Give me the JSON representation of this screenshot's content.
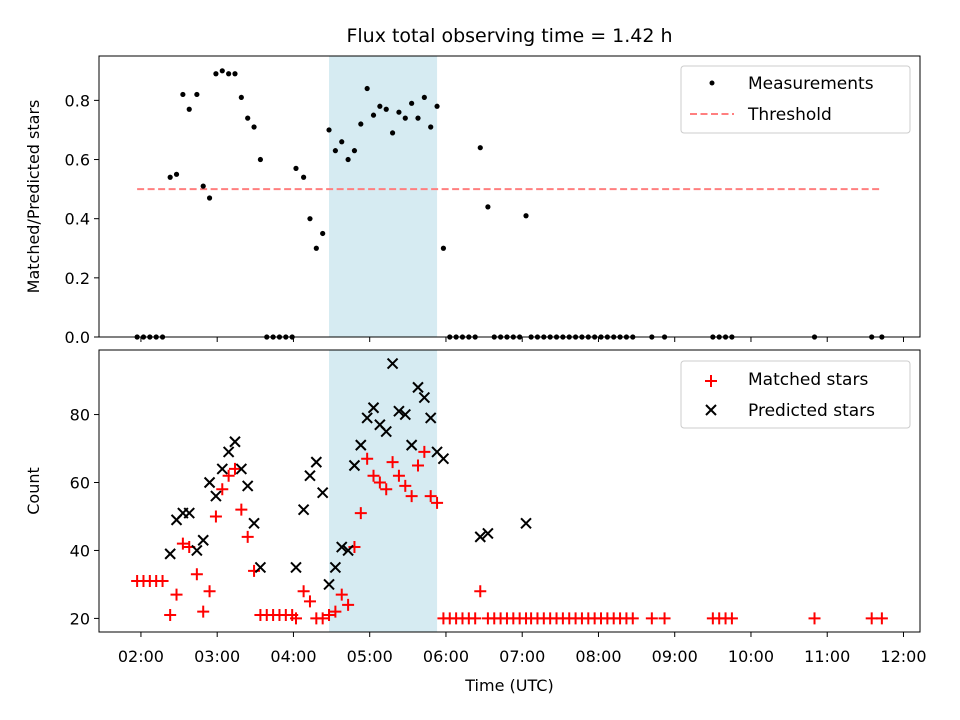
{
  "chart_data": [
    {
      "type": "scatter",
      "panel": "top",
      "title": "Flux total observing time = 1.42 h",
      "ylabel": "Matched/Predicted stars",
      "xlabel": "",
      "xlim": [
        "01:27",
        "12:13"
      ],
      "ylim": [
        0,
        0.95
      ],
      "yticks": [
        "0.0",
        "0.2",
        "0.4",
        "0.6",
        "0.8"
      ],
      "ytick_values": [
        0,
        0.2,
        0.4,
        0.6,
        0.8
      ],
      "shaded_interval": {
        "from": "04:28",
        "to": "05:53",
        "color": "#add8e6"
      },
      "legend": "top-right",
      "series": [
        {
          "name": "Measurements",
          "kind": "dot",
          "color": "#000000",
          "points": [
            [
              "01:57",
              0
            ],
            [
              "02:02",
              0
            ],
            [
              "02:07",
              0
            ],
            [
              "02:12",
              0
            ],
            [
              "02:17",
              0
            ],
            [
              "02:23",
              0.54
            ],
            [
              "02:28",
              0.55
            ],
            [
              "02:33",
              0.82
            ],
            [
              "02:38",
              0.77
            ],
            [
              "02:44",
              0.82
            ],
            [
              "02:49",
              0.51
            ],
            [
              "02:54",
              0.47
            ],
            [
              "02:59",
              0.89
            ],
            [
              "03:04",
              0.9
            ],
            [
              "03:09",
              0.89
            ],
            [
              "03:14",
              0.89
            ],
            [
              "03:19",
              0.81
            ],
            [
              "03:24",
              0.74
            ],
            [
              "03:29",
              0.71
            ],
            [
              "03:34",
              0.6
            ],
            [
              "03:39",
              0
            ],
            [
              "03:44",
              0
            ],
            [
              "03:49",
              0
            ],
            [
              "03:54",
              0
            ],
            [
              "03:59",
              0
            ],
            [
              "04:02",
              0.57
            ],
            [
              "04:08",
              0.54
            ],
            [
              "04:13",
              0.4
            ],
            [
              "04:18",
              0.3
            ],
            [
              "04:23",
              0.35
            ],
            [
              "04:28",
              0.7
            ],
            [
              "04:33",
              0.63
            ],
            [
              "04:38",
              0.66
            ],
            [
              "04:43",
              0.6
            ],
            [
              "04:48",
              0.63
            ],
            [
              "04:53",
              0.72
            ],
            [
              "04:58",
              0.84
            ],
            [
              "05:03",
              0.75
            ],
            [
              "05:08",
              0.78
            ],
            [
              "05:13",
              0.77
            ],
            [
              "05:18",
              0.69
            ],
            [
              "05:23",
              0.76
            ],
            [
              "05:28",
              0.74
            ],
            [
              "05:33",
              0.79
            ],
            [
              "05:38",
              0.74
            ],
            [
              "05:43",
              0.81
            ],
            [
              "05:48",
              0.71
            ],
            [
              "05:53",
              0.78
            ],
            [
              "05:58",
              0.3
            ],
            [
              "06:03",
              0
            ],
            [
              "06:08",
              0
            ],
            [
              "06:13",
              0
            ],
            [
              "06:18",
              0
            ],
            [
              "06:23",
              0
            ],
            [
              "06:27",
              0.64
            ],
            [
              "06:33",
              0.44
            ],
            [
              "06:38",
              0
            ],
            [
              "06:43",
              0
            ],
            [
              "06:48",
              0
            ],
            [
              "06:53",
              0
            ],
            [
              "06:58",
              0
            ],
            [
              "07:03",
              0.41
            ],
            [
              "07:07",
              0
            ],
            [
              "07:12",
              0
            ],
            [
              "07:17",
              0
            ],
            [
              "07:22",
              0
            ],
            [
              "07:27",
              0
            ],
            [
              "07:32",
              0
            ],
            [
              "07:37",
              0
            ],
            [
              "07:42",
              0
            ],
            [
              "07:47",
              0
            ],
            [
              "07:52",
              0
            ],
            [
              "07:57",
              0
            ],
            [
              "08:02",
              0
            ],
            [
              "08:07",
              0
            ],
            [
              "08:12",
              0
            ],
            [
              "08:17",
              0
            ],
            [
              "08:22",
              0
            ],
            [
              "08:27",
              0
            ],
            [
              "08:42",
              0
            ],
            [
              "08:52",
              0
            ],
            [
              "09:30",
              0
            ],
            [
              "09:35",
              0
            ],
            [
              "09:40",
              0
            ],
            [
              "09:45",
              0
            ],
            [
              "10:50",
              0
            ],
            [
              "11:35",
              0
            ],
            [
              "11:43",
              0
            ]
          ]
        },
        {
          "name": "Threshold",
          "kind": "dashed-line",
          "color": "#ff7f7f",
          "points": [
            [
              "01:57",
              0.5
            ],
            [
              "11:43",
              0.5
            ]
          ]
        }
      ]
    },
    {
      "type": "scatter",
      "panel": "bottom",
      "title": "",
      "ylabel": "Count",
      "xlabel": "Time (UTC)",
      "xlim": [
        "01:27",
        "12:13"
      ],
      "ylim": [
        16,
        99
      ],
      "yticks": [
        "20",
        "40",
        "60",
        "80"
      ],
      "ytick_values": [
        20,
        40,
        60,
        80
      ],
      "xticks": [
        "02:00",
        "03:00",
        "04:00",
        "05:00",
        "06:00",
        "07:00",
        "08:00",
        "09:00",
        "10:00",
        "11:00",
        "12:00"
      ],
      "shaded_interval": {
        "from": "04:28",
        "to": "05:53",
        "color": "#add8e6"
      },
      "legend": "top-right",
      "series": [
        {
          "name": "Matched stars",
          "kind": "plus",
          "color": "#ff0000",
          "points": [
            [
              "01:57",
              31
            ],
            [
              "02:02",
              31
            ],
            [
              "02:07",
              31
            ],
            [
              "02:12",
              31
            ],
            [
              "02:17",
              31
            ],
            [
              "02:23",
              21
            ],
            [
              "02:28",
              27
            ],
            [
              "02:33",
              42
            ],
            [
              "02:38",
              41
            ],
            [
              "02:44",
              33
            ],
            [
              "02:49",
              22
            ],
            [
              "02:54",
              28
            ],
            [
              "02:59",
              50
            ],
            [
              "03:04",
              58
            ],
            [
              "03:09",
              62
            ],
            [
              "03:14",
              64
            ],
            [
              "03:19",
              52
            ],
            [
              "03:24",
              44
            ],
            [
              "03:29",
              34
            ],
            [
              "03:34",
              21
            ],
            [
              "03:39",
              21
            ],
            [
              "03:44",
              21
            ],
            [
              "03:49",
              21
            ],
            [
              "03:54",
              21
            ],
            [
              "03:59",
              21
            ],
            [
              "04:02",
              20
            ],
            [
              "04:08",
              28
            ],
            [
              "04:13",
              25
            ],
            [
              "04:18",
              20
            ],
            [
              "04:23",
              20
            ],
            [
              "04:28",
              21
            ],
            [
              "04:33",
              22
            ],
            [
              "04:38",
              27
            ],
            [
              "04:43",
              24
            ],
            [
              "04:48",
              41
            ],
            [
              "04:53",
              51
            ],
            [
              "04:58",
              67
            ],
            [
              "05:03",
              62
            ],
            [
              "05:08",
              60
            ],
            [
              "05:13",
              58
            ],
            [
              "05:18",
              66
            ],
            [
              "05:23",
              62
            ],
            [
              "05:28",
              59
            ],
            [
              "05:33",
              56
            ],
            [
              "05:38",
              65
            ],
            [
              "05:43",
              69
            ],
            [
              "05:48",
              56
            ],
            [
              "05:53",
              54
            ],
            [
              "05:58",
              20
            ],
            [
              "06:03",
              20
            ],
            [
              "06:08",
              20
            ],
            [
              "06:13",
              20
            ],
            [
              "06:18",
              20
            ],
            [
              "06:23",
              20
            ],
            [
              "06:27",
              28
            ],
            [
              "06:33",
              20
            ],
            [
              "06:38",
              20
            ],
            [
              "06:43",
              20
            ],
            [
              "06:48",
              20
            ],
            [
              "06:53",
              20
            ],
            [
              "06:58",
              20
            ],
            [
              "07:03",
              20
            ],
            [
              "07:07",
              20
            ],
            [
              "07:12",
              20
            ],
            [
              "07:17",
              20
            ],
            [
              "07:22",
              20
            ],
            [
              "07:27",
              20
            ],
            [
              "07:32",
              20
            ],
            [
              "07:37",
              20
            ],
            [
              "07:42",
              20
            ],
            [
              "07:47",
              20
            ],
            [
              "07:52",
              20
            ],
            [
              "07:57",
              20
            ],
            [
              "08:02",
              20
            ],
            [
              "08:07",
              20
            ],
            [
              "08:12",
              20
            ],
            [
              "08:17",
              20
            ],
            [
              "08:22",
              20
            ],
            [
              "08:27",
              20
            ],
            [
              "08:42",
              20
            ],
            [
              "08:52",
              20
            ],
            [
              "09:30",
              20
            ],
            [
              "09:35",
              20
            ],
            [
              "09:40",
              20
            ],
            [
              "09:45",
              20
            ],
            [
              "10:50",
              20
            ],
            [
              "11:35",
              20
            ],
            [
              "11:43",
              20
            ]
          ]
        },
        {
          "name": "Predicted stars",
          "kind": "x",
          "color": "#000000",
          "points": [
            [
              "02:23",
              39
            ],
            [
              "02:28",
              49
            ],
            [
              "02:33",
              51
            ],
            [
              "02:38",
              51
            ],
            [
              "02:44",
              40
            ],
            [
              "02:49",
              43
            ],
            [
              "02:54",
              60
            ],
            [
              "02:59",
              56
            ],
            [
              "03:04",
              64
            ],
            [
              "03:09",
              69
            ],
            [
              "03:14",
              72
            ],
            [
              "03:19",
              64
            ],
            [
              "03:24",
              59
            ],
            [
              "03:29",
              48
            ],
            [
              "03:34",
              35
            ],
            [
              "04:02",
              35
            ],
            [
              "04:08",
              52
            ],
            [
              "04:13",
              62
            ],
            [
              "04:18",
              66
            ],
            [
              "04:23",
              57
            ],
            [
              "04:28",
              30
            ],
            [
              "04:33",
              35
            ],
            [
              "04:38",
              41
            ],
            [
              "04:43",
              40
            ],
            [
              "04:48",
              65
            ],
            [
              "04:53",
              71
            ],
            [
              "04:58",
              79
            ],
            [
              "05:03",
              82
            ],
            [
              "05:08",
              77
            ],
            [
              "05:13",
              75
            ],
            [
              "05:18",
              95
            ],
            [
              "05:23",
              81
            ],
            [
              "05:28",
              80
            ],
            [
              "05:33",
              71
            ],
            [
              "05:38",
              88
            ],
            [
              "05:43",
              85
            ],
            [
              "05:48",
              79
            ],
            [
              "05:53",
              69
            ],
            [
              "05:58",
              67
            ],
            [
              "06:27",
              44
            ],
            [
              "06:33",
              45
            ],
            [
              "07:03",
              48
            ]
          ]
        }
      ]
    }
  ]
}
